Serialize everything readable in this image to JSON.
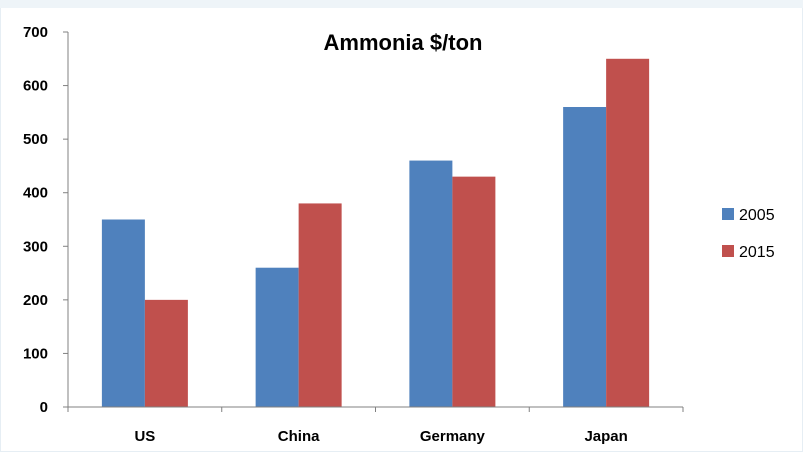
{
  "chart_data": {
    "type": "bar",
    "title": "Ammonia $/ton",
    "xlabel": "",
    "ylabel": "",
    "categories": [
      "US",
      "China",
      "Germany",
      "Japan"
    ],
    "series": [
      {
        "name": "2005",
        "color": "#4f81bd",
        "values": [
          350,
          260,
          460,
          560
        ]
      },
      {
        "name": "2015",
        "color": "#c0504d",
        "values": [
          200,
          380,
          430,
          650
        ]
      }
    ],
    "ylim": [
      0,
      700
    ],
    "yticks": [
      "0",
      "100",
      "200",
      "300",
      "400",
      "500",
      "600",
      "700"
    ],
    "grid": false,
    "legend_position": "right"
  }
}
